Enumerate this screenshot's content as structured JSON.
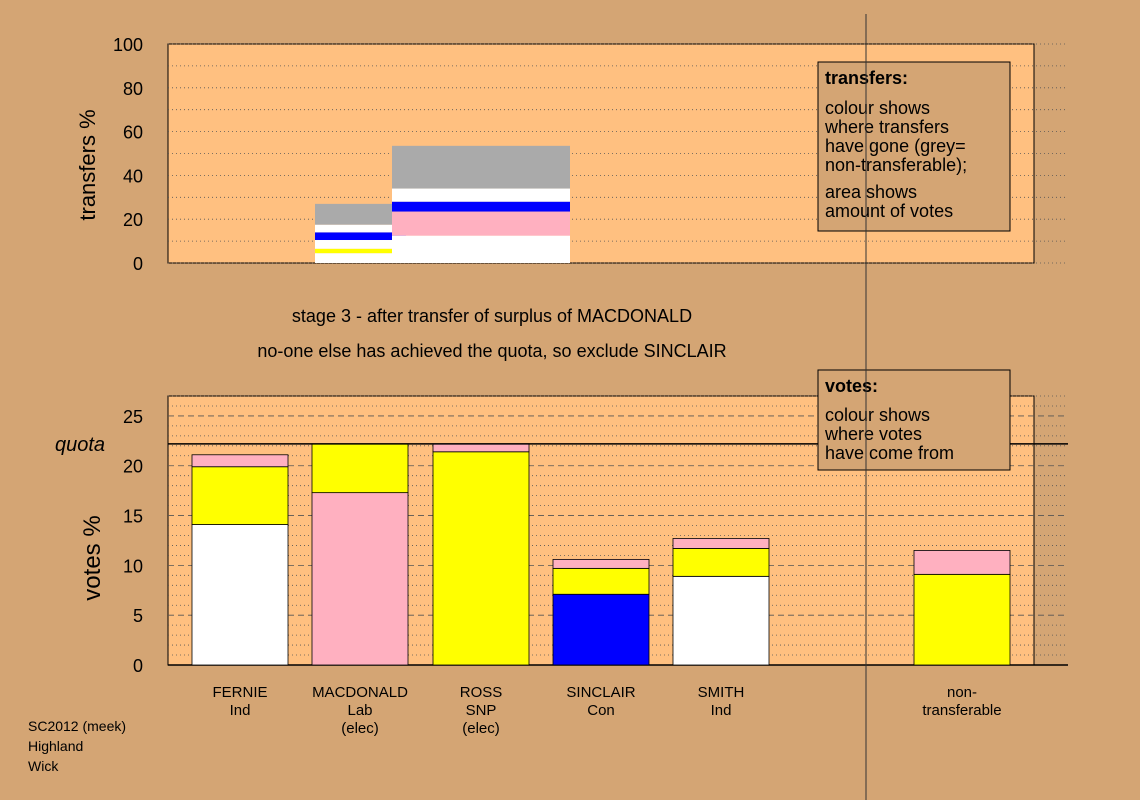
{
  "stage_title": "stage 3 - after transfer of surplus of MACDONALD",
  "stage_note": "no-one else has achieved the quota, so exclude SINCLAIR",
  "footer": [
    "SC2012 (meek)",
    "Highland",
    "Wick"
  ],
  "colors": {
    "background": "#d4a574",
    "panel": "#ffc080",
    "white": "#ffffff",
    "pink": "#ffb0c0",
    "yellow": "#ffff00",
    "blue": "#0000ff",
    "grey": "#aaaaaa"
  },
  "legend_transfers": {
    "title": "transfers:",
    "lines1": [
      "colour shows",
      "where transfers",
      "have gone (grey=",
      "non-transferable);"
    ],
    "lines2": [
      "area shows",
      "amount of votes"
    ]
  },
  "legend_votes": {
    "title": "votes:",
    "lines": [
      "colour shows",
      "where votes",
      "have come from"
    ]
  },
  "chart_data": [
    {
      "type": "bar",
      "subtype": "stacked-transfer-blocks",
      "ylabel": "transfers %",
      "ylim": [
        0,
        100
      ],
      "yticks": [
        0,
        20,
        40,
        60,
        80,
        100
      ],
      "grid": "dotted",
      "blocks": [
        {
          "from": "SINCLAIR",
          "segments": [
            {
              "color": "white",
              "value": 4.5
            },
            {
              "color": "yellow",
              "value": 2
            },
            {
              "color": "white",
              "value": 4
            },
            {
              "color": "blue",
              "value": 3.5
            },
            {
              "color": "white",
              "value": 3.5
            },
            {
              "color": "grey",
              "value": 9.5
            }
          ]
        },
        {
          "from": "MACDONALD",
          "segments": [
            {
              "color": "white",
              "value": 12.5
            },
            {
              "color": "pink",
              "value": 11
            },
            {
              "color": "blue",
              "value": 4.5
            },
            {
              "color": "white",
              "value": 6
            },
            {
              "color": "grey",
              "value": 19.5
            }
          ]
        }
      ]
    },
    {
      "type": "bar",
      "subtype": "stacked",
      "ylabel": "votes %",
      "ylim": [
        0,
        27
      ],
      "yticks": [
        0,
        5,
        10,
        15,
        20,
        25
      ],
      "quota": 22.2,
      "quota_label": "quota",
      "grid": "dashed",
      "candidates": [
        {
          "name": "FERNIE",
          "party": "Ind",
          "status": "",
          "segments": [
            {
              "color": "white",
              "value": 14.1
            },
            {
              "color": "yellow",
              "value": 5.8
            },
            {
              "color": "pink",
              "value": 1.2
            }
          ]
        },
        {
          "name": "MACDONALD",
          "party": "Lab",
          "status": "(elec)",
          "segments": [
            {
              "color": "pink",
              "value": 17.3
            },
            {
              "color": "yellow",
              "value": 4.9
            }
          ]
        },
        {
          "name": "ROSS",
          "party": "SNP",
          "status": "(elec)",
          "segments": [
            {
              "color": "yellow",
              "value": 21.4
            },
            {
              "color": "pink",
              "value": 0.8
            }
          ]
        },
        {
          "name": "SINCLAIR",
          "party": "Con",
          "status": "",
          "segments": [
            {
              "color": "blue",
              "value": 7.1
            },
            {
              "color": "yellow",
              "value": 2.6
            },
            {
              "color": "pink",
              "value": 0.9
            }
          ]
        },
        {
          "name": "SMITH",
          "party": "Ind",
          "status": "",
          "segments": [
            {
              "color": "white",
              "value": 8.9
            },
            {
              "color": "yellow",
              "value": 2.8
            },
            {
              "color": "pink",
              "value": 1.0
            }
          ]
        }
      ],
      "nontransferable": {
        "name": "non-",
        "party": "transferable",
        "segments": [
          {
            "color": "yellow",
            "value": 9.1
          },
          {
            "color": "pink",
            "value": 2.4
          }
        ]
      }
    }
  ]
}
